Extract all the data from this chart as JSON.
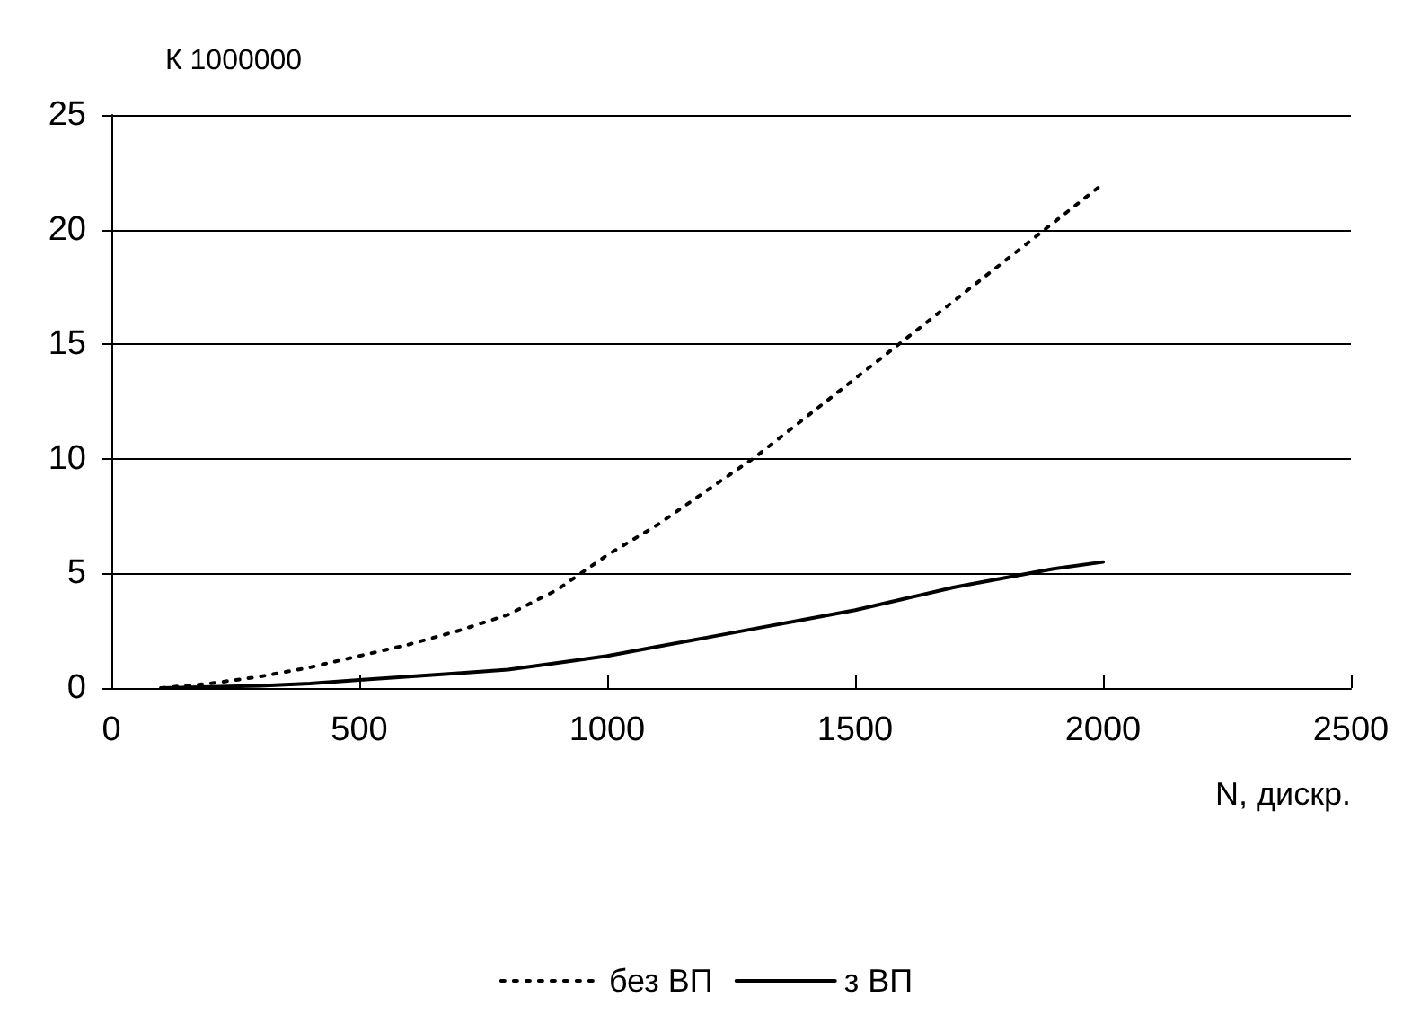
{
  "chart_data": {
    "type": "line",
    "ylabel": "К 1000000",
    "xlabel": "N, дискр.",
    "x": [
      100,
      200,
      300,
      400,
      500,
      600,
      700,
      800,
      900,
      1000,
      1100,
      1200,
      1300,
      1400,
      1500,
      1600,
      1700,
      1800,
      1900,
      2000
    ],
    "series": [
      {
        "name": "без ВП",
        "color": "#000000",
        "line_style": "dotted",
        "values": [
          0,
          0.2,
          0.5,
          0.9,
          1.4,
          1.9,
          2.5,
          3.2,
          4.3,
          5.8,
          7.1,
          8.6,
          10.1,
          11.8,
          13.5,
          15.2,
          16.9,
          18.6,
          20.3,
          22
        ]
      },
      {
        "name": "з ВП",
        "color": "#000000",
        "line_style": "solid",
        "values": [
          0,
          0.05,
          0.1,
          0.2,
          0.35,
          0.5,
          0.65,
          0.8,
          1.1,
          1.4,
          1.8,
          2.2,
          2.6,
          3.0,
          3.4,
          3.9,
          4.4,
          4.8,
          5.2,
          5.5
        ]
      }
    ],
    "xlim": [
      0,
      2500
    ],
    "xticks": [
      0,
      500,
      1000,
      1500,
      2000,
      2500
    ],
    "ylim": [
      0,
      25
    ],
    "yticks": [
      0,
      5,
      10,
      15,
      20,
      25
    ],
    "grid": "y",
    "legend": "bottom",
    "marker": "none"
  }
}
